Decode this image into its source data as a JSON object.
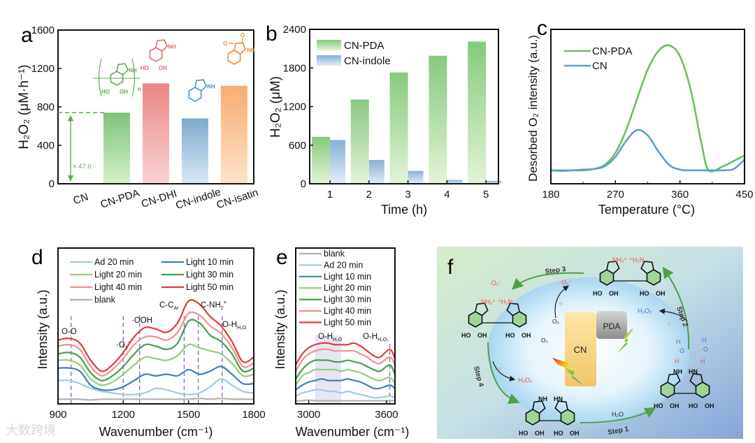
{
  "figure": {
    "panel_labels": [
      "a",
      "b",
      "c",
      "d",
      "e",
      "f"
    ],
    "watermark": "大数跨境"
  },
  "chart_data": [
    {
      "panel": "a",
      "type": "bar",
      "categories": [
        "CN",
        "CN-PDA",
        "CN-DHI",
        "CN-indole",
        "CN-isatin"
      ],
      "values": [
        5,
        740,
        1045,
        680,
        1020
      ],
      "ylabel": "H₂O₂ (μM·h⁻¹)",
      "xlabel": "",
      "ylim": [
        0,
        1600
      ],
      "yticks": [
        0,
        400,
        800,
        1200,
        1600
      ],
      "annotation": "× 47.0",
      "colors": [
        "#7a7fb0",
        "#7cc47a",
        "#e98585",
        "#7fa9cf",
        "#f7ad70"
      ],
      "structures": [
        {
          "bar": 1,
          "labels": [
            "NH",
            "HO",
            "OH",
            "n"
          ]
        },
        {
          "bar": 2,
          "labels": [
            "NH",
            "HO",
            "OH"
          ]
        },
        {
          "bar": 3,
          "labels": [
            "NH"
          ]
        },
        {
          "bar": 4,
          "labels": [
            "O",
            "O",
            "NH"
          ]
        }
      ]
    },
    {
      "panel": "b",
      "type": "bar",
      "categories": [
        "1",
        "2",
        "3",
        "4",
        "5"
      ],
      "series": [
        {
          "name": "CN-PDA",
          "values": [
            730,
            1310,
            1730,
            1990,
            2210
          ],
          "color": "#7cc47a"
        },
        {
          "name": "CN-indole",
          "values": [
            680,
            370,
            200,
            60,
            45
          ],
          "color": "#7fa9cf"
        }
      ],
      "xlabel": "Time (h)",
      "ylabel": "H₂O₂ (μM)",
      "ylim": [
        0,
        2400
      ],
      "yticks": [
        0,
        600,
        1200,
        1800,
        2400
      ],
      "legend": "top-left"
    },
    {
      "panel": "c",
      "type": "line",
      "xlabel": "Temperature (°C)",
      "ylabel": "Desorbed O₂ intensity (a.u.)",
      "xlim": [
        180,
        450
      ],
      "ylim": [
        0,
        11.5
      ],
      "xticks": [
        180,
        270,
        360,
        450
      ],
      "legend": "top-left",
      "series": [
        {
          "name": "CN-PDA",
          "color": "#6cbf5f",
          "x": [
            180,
            195,
            210,
            225,
            240,
            255,
            270,
            285,
            300,
            315,
            330,
            345,
            360,
            375,
            390,
            400,
            420,
            435,
            450
          ],
          "y": [
            1.0,
            0.95,
            1.0,
            1.0,
            1.1,
            1.4,
            2.3,
            4.0,
            6.3,
            8.5,
            9.9,
            10.3,
            9.5,
            7.0,
            3.0,
            1.0,
            1.3,
            1.7,
            2.1
          ]
        },
        {
          "name": "CN",
          "color": "#5b9fd0",
          "x": [
            180,
            195,
            210,
            225,
            240,
            255,
            270,
            285,
            300,
            315,
            330,
            345,
            360,
            375,
            390,
            405,
            420,
            435,
            450
          ],
          "y": [
            1.0,
            1.0,
            1.0,
            1.05,
            1.1,
            1.3,
            2.0,
            3.2,
            4.0,
            3.6,
            2.4,
            1.4,
            1.05,
            1.0,
            1.0,
            1.0,
            1.0,
            1.1,
            1.8
          ]
        }
      ]
    },
    {
      "panel": "d",
      "type": "line",
      "xlabel": "Wavenumber (cm⁻¹)",
      "ylabel": "Intensity (a.u.)",
      "xlim": [
        900,
        1800
      ],
      "ylim": [
        0,
        10
      ],
      "xticks": [
        900,
        1200,
        1500,
        1800
      ],
      "legend": "top",
      "x": [
        900,
        950,
        1000,
        1050,
        1100,
        1150,
        1200,
        1250,
        1300,
        1350,
        1400,
        1450,
        1500,
        1550,
        1600,
        1650,
        1700,
        1750,
        1800
      ],
      "series": [
        {
          "name": "Ad 20 min",
          "color": "#9fcbe6",
          "y": [
            1.5,
            1.5,
            1.3,
            1.0,
            0.8,
            0.7,
            0.6,
            0.6,
            0.7,
            1.0,
            0.9,
            0.7,
            0.6,
            0.7,
            1.1,
            1.6,
            1.2,
            0.8,
            0.7
          ]
        },
        {
          "name": "Light 10 min",
          "color": "#3f7fbf",
          "y": [
            2.3,
            2.3,
            2.1,
            1.2,
            0.9,
            0.9,
            1.1,
            1.5,
            1.9,
            1.8,
            1.9,
            1.8,
            2.2,
            1.9,
            2.1,
            2.4,
            1.9,
            1.3,
            1.3
          ]
        },
        {
          "name": "Light 20 min",
          "color": "#8fd07a",
          "y": [
            2.8,
            2.8,
            2.5,
            1.6,
            1.2,
            1.4,
            1.9,
            2.5,
            3.0,
            2.9,
            2.8,
            3.1,
            3.8,
            3.6,
            3.4,
            3.2,
            2.6,
            1.8,
            1.9
          ]
        },
        {
          "name": "Light 30 min",
          "color": "#3fa04a",
          "y": [
            3.2,
            3.3,
            3.0,
            2.0,
            1.5,
            1.8,
            2.4,
            3.2,
            3.8,
            3.7,
            3.5,
            3.9,
            5.3,
            5.2,
            4.4,
            4.0,
            3.2,
            2.1,
            2.3
          ]
        },
        {
          "name": "Light 40 min",
          "color": "#f09090",
          "y": [
            3.7,
            3.8,
            3.5,
            2.4,
            1.8,
            2.2,
            2.9,
            3.8,
            4.3,
            4.3,
            4.1,
            4.6,
            5.8,
            5.7,
            5.0,
            4.5,
            3.6,
            2.4,
            2.6
          ]
        },
        {
          "name": "Light 50 min",
          "color": "#e03c3c",
          "y": [
            4.1,
            4.2,
            3.9,
            2.8,
            2.1,
            2.5,
            3.3,
            4.3,
            4.9,
            4.8,
            4.6,
            5.2,
            6.6,
            6.4,
            5.6,
            5.0,
            4.0,
            2.7,
            3.0
          ]
        },
        {
          "name": "blank",
          "color": "#b0b0b0",
          "y": [
            0.3,
            0.3,
            0.3,
            0.25,
            0.3,
            0.3,
            0.3,
            0.3,
            0.3,
            0.3,
            0.3,
            0.3,
            0.3,
            0.35,
            0.3,
            0.35,
            0.3,
            0.3,
            0.3
          ]
        }
      ],
      "markers": [
        960,
        1200,
        1275,
        1480,
        1545,
        1655
      ],
      "annotations": [
        {
          "main": "O-O",
          "sub": "",
          "sup": ""
        },
        {
          "main": "·O",
          "sub": "2",
          "sup": "-"
        },
        {
          "main": "·OOH",
          "sub": "",
          "sup": ""
        },
        {
          "main": "C-C",
          "sub": "Ar",
          "sup": ""
        },
        {
          "main": "C-NH",
          "sub": "2",
          "sup": "+"
        },
        {
          "main": "O-H",
          "sub": "H₂O",
          "sup": ""
        }
      ]
    },
    {
      "panel": "e",
      "type": "line",
      "xlabel": "Wavenumber (cm⁻¹)",
      "ylabel": "Intensity (a.u.)",
      "xlim": [
        2900,
        3665
      ],
      "ylim": [
        0,
        10
      ],
      "xticks": [
        3000,
        3600
      ],
      "legend": "top",
      "x": [
        2900,
        2950,
        3000,
        3050,
        3100,
        3150,
        3200,
        3250,
        3300,
        3350,
        3400,
        3450,
        3500,
        3550,
        3625,
        3665
      ],
      "series": [
        {
          "name": "blank",
          "color": "#b0b0b0",
          "y": [
            0.2,
            0.2,
            0.25,
            0.2,
            0.2,
            0.2,
            0.2,
            0.2,
            0.2,
            0.2,
            0.2,
            0.2,
            0.2,
            0.2,
            0.2,
            0.2
          ]
        },
        {
          "name": "Ad 20 min",
          "color": "#9fcbe6",
          "y": [
            0.5,
            0.7,
            0.8,
            0.9,
            0.9,
            0.8,
            0.8,
            0.7,
            0.8,
            0.7,
            0.6,
            0.5,
            0.4,
            0.4,
            0.5,
            0.4
          ]
        },
        {
          "name": "Light 10 min",
          "color": "#3f7fbf",
          "y": [
            0.9,
            1.2,
            1.4,
            1.5,
            1.6,
            1.5,
            1.5,
            1.5,
            1.6,
            1.5,
            1.4,
            1.2,
            1.0,
            1.0,
            1.2,
            1.0
          ]
        },
        {
          "name": "Light 20 min",
          "color": "#8fd07a",
          "y": [
            1.2,
            1.8,
            2.0,
            2.2,
            2.2,
            2.2,
            2.2,
            2.1,
            2.2,
            2.1,
            2.0,
            1.8,
            1.6,
            1.5,
            1.7,
            1.3
          ]
        },
        {
          "name": "Light 30 min",
          "color": "#3fa04a",
          "y": [
            1.6,
            2.2,
            2.6,
            2.8,
            2.8,
            2.8,
            2.7,
            2.7,
            2.8,
            2.7,
            2.6,
            2.4,
            2.2,
            2.1,
            2.5,
            1.9
          ]
        },
        {
          "name": "Light 40 min",
          "color": "#f09090",
          "y": [
            2.1,
            2.8,
            3.2,
            3.4,
            3.5,
            3.5,
            3.4,
            3.4,
            3.4,
            3.4,
            3.2,
            3.0,
            2.7,
            2.6,
            3.0,
            2.5
          ]
        },
        {
          "name": "Light 50 min",
          "color": "#e03c3c",
          "y": [
            2.5,
            3.2,
            3.6,
            3.8,
            3.9,
            3.9,
            3.8,
            3.8,
            3.8,
            3.9,
            3.7,
            3.4,
            3.1,
            3.0,
            3.5,
            2.9
          ]
        }
      ],
      "shaded_range": [
        3050,
        3250
      ],
      "markers": [
        3625
      ],
      "annotations": [
        {
          "main": "O-H",
          "sub": "H₂O",
          "sup": ""
        },
        {
          "main": "O-H",
          "sub": "H₂O₂",
          "sup": ""
        }
      ]
    }
  ],
  "diagram": {
    "panel": "f",
    "steps": [
      "Step 1",
      "Step 2",
      "Step 3",
      "Step 4"
    ],
    "cn_label": "CN",
    "pda_label": "PDA",
    "species": {
      "o2_radical": "·O₂⁻",
      "electron": "e⁻",
      "hole": "h⁺",
      "o2": "O₂",
      "h2o2": "H₂O₂",
      "h2o": "H₂O",
      "nh2_plus": "NH₂⁺",
      "h2n_plus": "⁺H₂N",
      "nh": "NH",
      "hn": "HN",
      "ho": "HO",
      "oh": "OH",
      "h": "H",
      "o": "O"
    },
    "colors": {
      "arrow": "#4ea04a",
      "ring": "#9fd49a",
      "red_text": "#e8553f",
      "blue_text": "#3c78c8",
      "orange_text": "#e8a060"
    }
  }
}
